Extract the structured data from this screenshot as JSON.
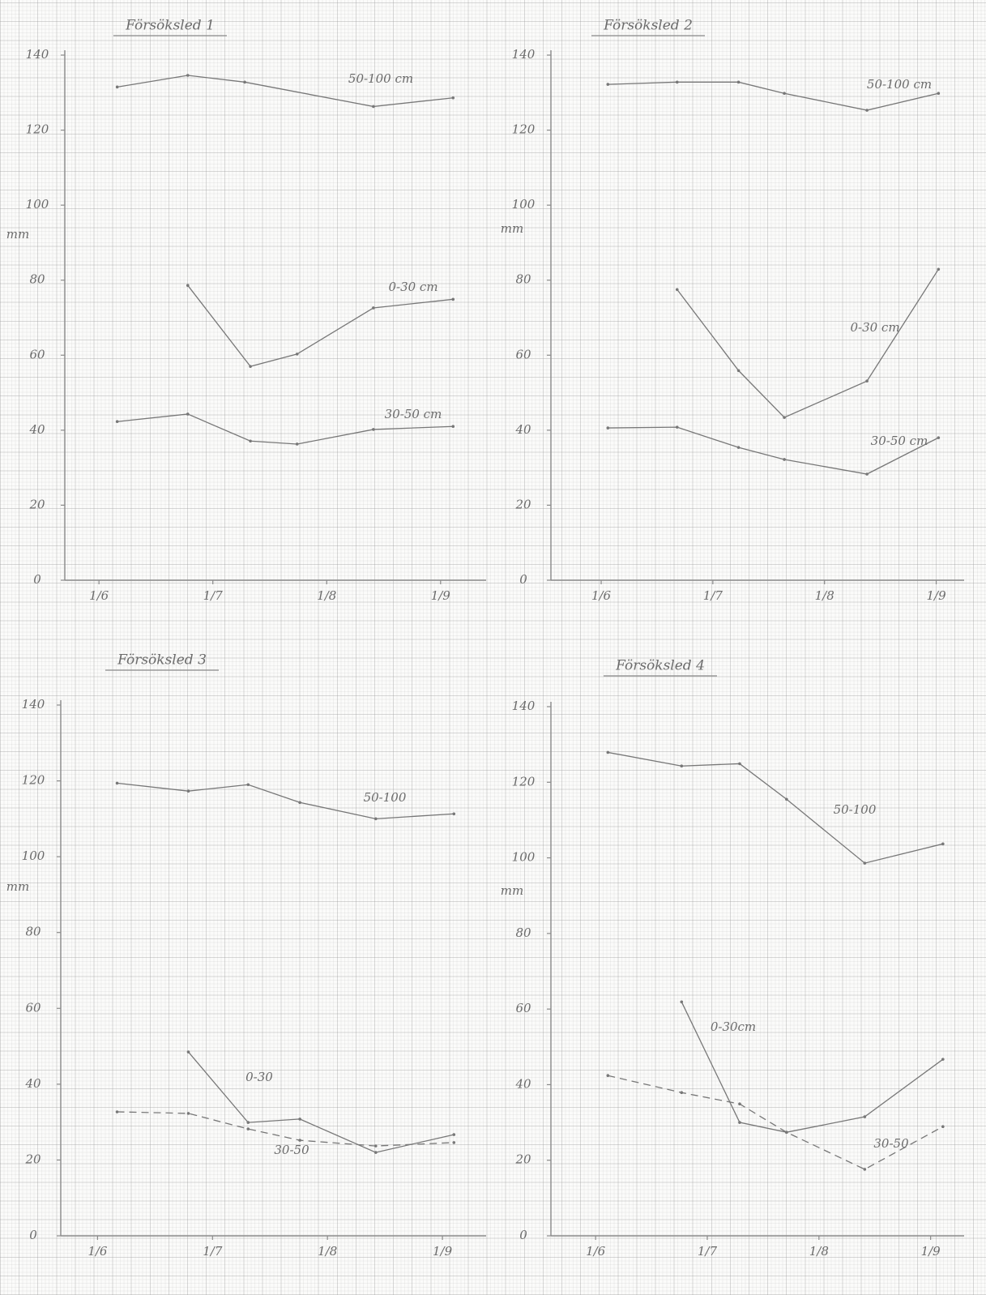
{
  "chart_data": [
    {
      "type": "line",
      "title": "Försöksled 1",
      "y_label": "mm",
      "xlim": [
        5.7,
        9.4
      ],
      "xticks": [
        {
          "value": 6,
          "label": "1/6"
        },
        {
          "value": 7,
          "label": "1/7"
        },
        {
          "value": 8,
          "label": "1/8"
        },
        {
          "value": 9,
          "label": "1/9"
        }
      ],
      "ylim": [
        0,
        140
      ],
      "yticks": [
        0,
        20,
        40,
        60,
        80,
        100,
        120,
        140
      ],
      "series": [
        {
          "name": "50-100 cm",
          "color": "#777777",
          "dashed": false,
          "x": [
            6.16,
            6.78,
            7.28,
            8.41,
            9.11
          ],
          "values": [
            131.5,
            134.6,
            132.8,
            126.3,
            128.6
          ]
        },
        {
          "name": "0-30 cm",
          "color": "#777777",
          "dashed": false,
          "x": [
            6.78,
            7.33,
            7.74,
            8.41,
            9.11
          ],
          "values": [
            78.6,
            57.0,
            60.3,
            72.6,
            74.9
          ]
        },
        {
          "name": "30-50 cm",
          "color": "#777777",
          "dashed": false,
          "x": [
            6.16,
            6.78,
            7.33,
            7.74,
            8.41,
            9.11
          ],
          "values": [
            42.3,
            44.3,
            37.1,
            36.3,
            40.2,
            41.0
          ]
        }
      ]
    },
    {
      "type": "line",
      "title": "Försöksled 2",
      "y_label": "mm",
      "xlim": [
        5.55,
        9.25
      ],
      "xticks": [
        {
          "value": 6,
          "label": "1/6"
        },
        {
          "value": 7,
          "label": "1/7"
        },
        {
          "value": 8,
          "label": "1/8"
        },
        {
          "value": 9,
          "label": "1/9"
        }
      ],
      "ylim": [
        0,
        140
      ],
      "yticks": [
        0,
        20,
        40,
        60,
        80,
        100,
        120,
        140
      ],
      "series": [
        {
          "name": "50-100 cm",
          "color": "#777777",
          "dashed": false,
          "x": [
            6.06,
            6.68,
            7.23,
            7.64,
            8.38,
            9.02
          ],
          "values": [
            132.2,
            132.8,
            132.8,
            129.8,
            125.3,
            129.8
          ]
        },
        {
          "name": "0-30 cm",
          "color": "#777777",
          "dashed": false,
          "x": [
            6.68,
            7.23,
            7.64,
            8.38,
            9.02
          ],
          "values": [
            77.5,
            55.9,
            43.4,
            53.1,
            82.9
          ]
        },
        {
          "name": "30-50 cm",
          "color": "#777777",
          "dashed": false,
          "x": [
            6.06,
            6.68,
            7.23,
            7.64,
            8.38,
            9.02
          ],
          "values": [
            40.6,
            40.8,
            35.4,
            32.2,
            28.3,
            38.0
          ]
        }
      ]
    },
    {
      "type": "line",
      "title": "Försöksled 3",
      "y_label": "mm",
      "xlim": [
        5.68,
        9.38
      ],
      "xticks": [
        {
          "value": 6,
          "label": "1/6"
        },
        {
          "value": 7,
          "label": "1/7"
        },
        {
          "value": 8,
          "label": "1/8"
        },
        {
          "value": 9,
          "label": "1/9"
        }
      ],
      "ylim": [
        0,
        140
      ],
      "yticks": [
        0,
        20,
        40,
        60,
        80,
        100,
        120,
        140
      ],
      "series": [
        {
          "name": "50-100",
          "color": "#777777",
          "dashed": false,
          "x": [
            6.17,
            6.79,
            7.31,
            7.76,
            8.42,
            9.1
          ],
          "values": [
            119.4,
            117.3,
            119.0,
            114.3,
            110.0,
            111.3
          ]
        },
        {
          "name": "0-30",
          "color": "#777777",
          "dashed": false,
          "x": [
            6.79,
            7.31,
            7.76,
            8.42,
            9.1
          ],
          "values": [
            48.5,
            29.9,
            30.8,
            22.0,
            26.7
          ]
        },
        {
          "name": "30-50",
          "color": "#777777",
          "dashed": true,
          "x": [
            6.17,
            6.79,
            7.31,
            7.76,
            8.42,
            9.1
          ],
          "values": [
            32.7,
            32.3,
            28.2,
            25.2,
            23.7,
            24.6
          ]
        }
      ]
    },
    {
      "type": "line",
      "title": "Försöksled 4",
      "y_label": "mm",
      "xlim": [
        5.6,
        9.3
      ],
      "xticks": [
        {
          "value": 6,
          "label": "1/6"
        },
        {
          "value": 7,
          "label": "1/7"
        },
        {
          "value": 8,
          "label": "1/8"
        },
        {
          "value": 9,
          "label": "1/9"
        }
      ],
      "ylim": [
        0,
        140
      ],
      "yticks": [
        0,
        20,
        40,
        60,
        80,
        100,
        120,
        140
      ],
      "series": [
        {
          "name": "50-100",
          "color": "#777777",
          "dashed": false,
          "x": [
            6.11,
            6.77,
            7.29,
            7.71,
            8.41,
            9.11
          ],
          "values": [
            127.9,
            124.3,
            124.9,
            115.5,
            98.6,
            103.7
          ]
        },
        {
          "name": "0-30cm",
          "color": "#777777",
          "dashed": false,
          "x": [
            6.77,
            7.29,
            7.71,
            8.41,
            9.11
          ],
          "values": [
            61.9,
            30.0,
            27.4,
            31.5,
            46.7
          ]
        },
        {
          "name": "30-50",
          "color": "#777777",
          "dashed": true,
          "x": [
            6.11,
            6.77,
            7.29,
            7.71,
            8.41,
            9.11
          ],
          "values": [
            42.4,
            37.9,
            34.9,
            27.4,
            17.6,
            28.9
          ]
        }
      ]
    }
  ]
}
